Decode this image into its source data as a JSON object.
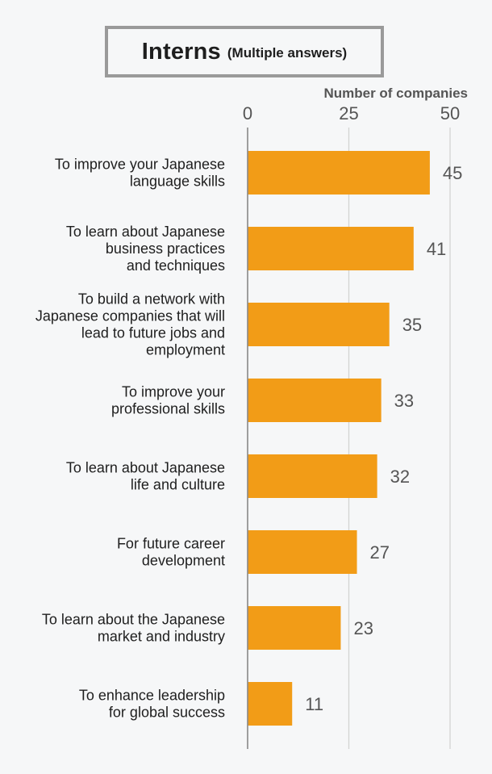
{
  "chart_data": {
    "type": "bar",
    "orientation": "horizontal",
    "title": "Interns",
    "subtitle": "(Multiple answers)",
    "xlabel": "Number of companies",
    "ylabel": "",
    "xlim": [
      0,
      50
    ],
    "xticks": [
      "0",
      "25",
      "50"
    ],
    "grid": true,
    "categories": [
      [
        "To improve your Japanese",
        "language skills"
      ],
      [
        "To learn about Japanese",
        "business practices",
        "and techniques"
      ],
      [
        "To build a network with",
        "Japanese companies that will",
        "lead to future jobs and",
        "employment"
      ],
      [
        "To improve your",
        "professional skills"
      ],
      [
        "To learn about Japanese",
        "life and culture"
      ],
      [
        "For future career",
        "development"
      ],
      [
        "To learn about the Japanese",
        "market and industry"
      ],
      [
        "To enhance leadership",
        "for global success"
      ]
    ],
    "values": [
      45,
      41,
      35,
      33,
      32,
      27,
      23,
      11
    ],
    "data_labels": [
      "45",
      "41",
      "35",
      "33",
      "32",
      "27",
      "23",
      "11"
    ],
    "colors": {
      "bar": "#f29c17",
      "text": "#1e1e1e",
      "label": "#555555",
      "axis": "#888888",
      "grid": "#d3d3d3"
    }
  }
}
